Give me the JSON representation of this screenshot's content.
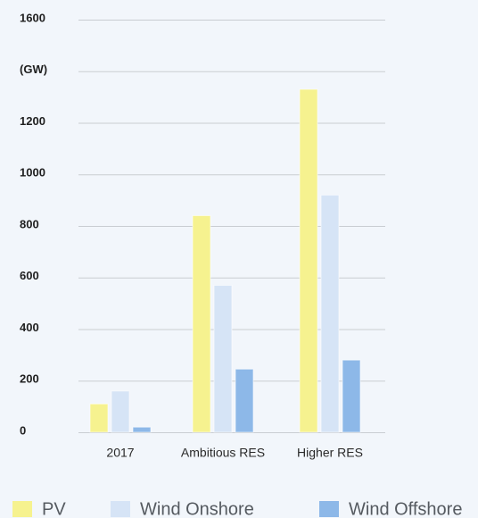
{
  "chart_data": {
    "type": "bar",
    "ylabel": "(GW)",
    "y_ticks": [
      "0",
      "200",
      "400",
      "600",
      "800",
      "1000",
      "1200",
      "(GW)",
      "1600"
    ],
    "ylim": [
      0,
      1600
    ],
    "grid": true,
    "legend_position": "bottom",
    "categories": [
      "2017",
      "Ambitious RES",
      "Higher RES"
    ],
    "series": [
      {
        "name": "PV",
        "color": "#f6f28f",
        "values": [
          110,
          840,
          1330
        ]
      },
      {
        "name": "Wind Onshore",
        "color": "#d6e4f6",
        "values": [
          160,
          570,
          920
        ]
      },
      {
        "name": "Wind Offshore",
        "color": "#8db8e8",
        "values": [
          20,
          245,
          280
        ]
      }
    ]
  }
}
